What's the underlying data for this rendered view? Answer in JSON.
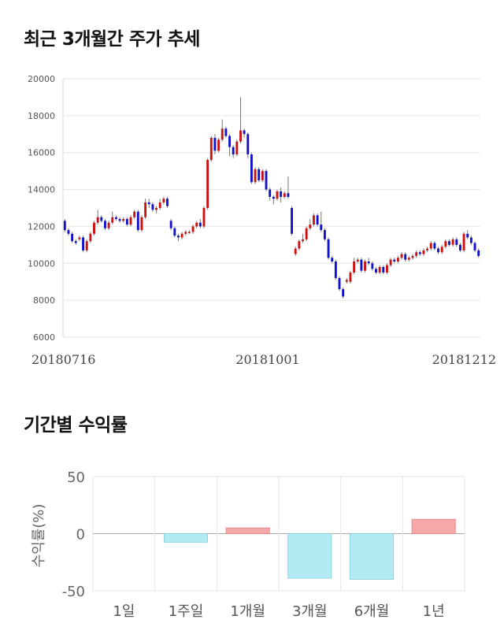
{
  "sections": {
    "price_title": "최근 3개월간 주가 추세",
    "return_title": "기간별 수익률"
  },
  "colors": {
    "up": "#cc1111",
    "down": "#1111cc",
    "positive_bar": "#f7a8a8",
    "negative_bar": "#b3ebf5",
    "grid": "#e6e6e6"
  },
  "chart_data": [
    {
      "type": "candlestick",
      "title": "최근 3개월간 주가 추세",
      "ylim": [
        6000,
        20000
      ],
      "y_ticks": [
        "20000",
        "18000",
        "16000",
        "14000",
        "12000",
        "10000",
        "8000",
        "6000"
      ],
      "x_tick_labels": [
        "20180716",
        "20181001",
        "20181212"
      ],
      "grid": true,
      "candles": [
        [
          12300,
          11800,
          11700,
          12400
        ],
        [
          11800,
          11600,
          11500,
          11900
        ],
        [
          11600,
          11200,
          11100,
          11700
        ],
        [
          11200,
          11100,
          11000,
          11300
        ],
        [
          11300,
          11400,
          11200,
          11500
        ],
        [
          11400,
          10700,
          10600,
          11500
        ],
        [
          10700,
          11200,
          10600,
          11300
        ],
        [
          11200,
          11600,
          11100,
          11700
        ],
        [
          11600,
          12200,
          11500,
          12300
        ],
        [
          12200,
          12500,
          12100,
          12900
        ],
        [
          12500,
          12300,
          12200,
          12600
        ],
        [
          12300,
          11900,
          11800,
          12400
        ],
        [
          11900,
          12200,
          11800,
          12300
        ],
        [
          12200,
          12500,
          12100,
          12800
        ],
        [
          12500,
          12400,
          12300,
          12600
        ],
        [
          12400,
          12300,
          12200,
          12500
        ],
        [
          12300,
          12400,
          12200,
          12500
        ],
        [
          12400,
          12100,
          12000,
          12500
        ],
        [
          12100,
          12500,
          12000,
          12600
        ],
        [
          12500,
          12800,
          12400,
          12900
        ],
        [
          12800,
          11800,
          11700,
          12900
        ],
        [
          11800,
          12500,
          11700,
          12600
        ],
        [
          12500,
          13300,
          12400,
          13500
        ],
        [
          13300,
          13200,
          13000,
          13500
        ],
        [
          13200,
          12900,
          12800,
          13300
        ],
        [
          12900,
          13000,
          12700,
          13100
        ],
        [
          13000,
          13300,
          12900,
          13500
        ],
        [
          13300,
          13500,
          13200,
          13600
        ],
        [
          13500,
          13100,
          13000,
          13600
        ],
        [
          12300,
          11900,
          11800,
          12400
        ],
        [
          11900,
          11500,
          11400,
          12000
        ],
        [
          11500,
          11400,
          11200,
          11600
        ],
        [
          11400,
          11600,
          11300,
          11700
        ],
        [
          11600,
          11700,
          11500,
          11800
        ],
        [
          11700,
          11700,
          11600,
          11800
        ],
        [
          11700,
          12000,
          11600,
          12100
        ],
        [
          12000,
          12200,
          11900,
          12300
        ],
        [
          12200,
          12000,
          11900,
          12400
        ],
        [
          12000,
          13000,
          11900,
          13100
        ],
        [
          13000,
          15600,
          12900,
          15700
        ],
        [
          15600,
          16800,
          15500,
          16900
        ],
        [
          16800,
          16100,
          15900,
          17000
        ],
        [
          16100,
          16700,
          16000,
          16800
        ],
        [
          16700,
          17300,
          16600,
          17800
        ],
        [
          17300,
          16900,
          16800,
          17400
        ],
        [
          16900,
          16300,
          15800,
          17000
        ],
        [
          16300,
          15900,
          15700,
          16400
        ],
        [
          15900,
          16600,
          15800,
          16700
        ],
        [
          16600,
          17200,
          16500,
          19000
        ],
        [
          17200,
          17000,
          16800,
          17300
        ],
        [
          17000,
          15900,
          15700,
          17100
        ],
        [
          15900,
          14400,
          14300,
          16000
        ],
        [
          14400,
          15100,
          14300,
          15200
        ],
        [
          15100,
          14500,
          14400,
          15200
        ],
        [
          14500,
          15000,
          14400,
          15100
        ],
        [
          15000,
          14000,
          13900,
          15100
        ],
        [
          14000,
          13600,
          13400,
          14100
        ],
        [
          13600,
          13500,
          13200,
          13700
        ],
        [
          13500,
          13900,
          13400,
          14000
        ],
        [
          13900,
          13600,
          13300,
          14100
        ],
        [
          13600,
          13800,
          13500,
          13900
        ],
        [
          13800,
          13600,
          13500,
          14700
        ],
        [
          13000,
          11600,
          11500,
          13100
        ],
        [
          10500,
          10800,
          10400,
          10900
        ],
        [
          10800,
          11200,
          10700,
          11300
        ],
        [
          11200,
          11300,
          11100,
          11600
        ],
        [
          11300,
          11900,
          11200,
          12000
        ],
        [
          11900,
          12100,
          11800,
          12400
        ],
        [
          12100,
          12600,
          12000,
          12700
        ],
        [
          12600,
          12100,
          12000,
          12700
        ],
        [
          12100,
          11800,
          11700,
          12800
        ],
        [
          11800,
          11300,
          11200,
          11900
        ],
        [
          11300,
          10300,
          10200,
          11400
        ],
        [
          10300,
          10100,
          10000,
          10400
        ],
        [
          10100,
          9200,
          9100,
          10200
        ],
        [
          9200,
          8600,
          8500,
          9300
        ],
        [
          8600,
          8200,
          8100,
          8700
        ],
        [
          9000,
          9100,
          8900,
          9200
        ],
        [
          9000,
          9500,
          8900,
          9600
        ],
        [
          9500,
          10100,
          9400,
          10300
        ],
        [
          10100,
          10200,
          10000,
          10300
        ],
        [
          10200,
          9600,
          9500,
          10300
        ],
        [
          9600,
          10100,
          9500,
          10200
        ],
        [
          10100,
          10000,
          9900,
          10300
        ],
        [
          10000,
          9700,
          9600,
          10100
        ],
        [
          9700,
          9500,
          9400,
          9800
        ],
        [
          9500,
          9800,
          9400,
          9900
        ],
        [
          9800,
          9500,
          9400,
          9900
        ],
        [
          9500,
          9900,
          9400,
          10000
        ],
        [
          9900,
          10200,
          9800,
          10300
        ],
        [
          10200,
          10100,
          10000,
          10300
        ],
        [
          10100,
          10300,
          10000,
          10400
        ],
        [
          10300,
          10500,
          10200,
          10600
        ],
        [
          10500,
          10200,
          10100,
          10600
        ],
        [
          10200,
          10300,
          10100,
          10400
        ],
        [
          10300,
          10400,
          10200,
          10500
        ],
        [
          10400,
          10600,
          10300,
          10700
        ],
        [
          10600,
          10500,
          10400,
          10700
        ],
        [
          10500,
          10700,
          10400,
          10800
        ],
        [
          10700,
          10800,
          10600,
          10900
        ],
        [
          10800,
          11100,
          10700,
          11200
        ],
        [
          11100,
          10800,
          10700,
          11200
        ],
        [
          10800,
          10600,
          10500,
          10900
        ],
        [
          10600,
          10900,
          10500,
          11000
        ],
        [
          10900,
          11200,
          10800,
          11300
        ],
        [
          11200,
          11000,
          10900,
          11300
        ],
        [
          11000,
          11300,
          10900,
          11400
        ],
        [
          11300,
          11000,
          10900,
          11400
        ],
        [
          11000,
          10700,
          10600,
          11100
        ],
        [
          10700,
          11600,
          10600,
          11700
        ],
        [
          11600,
          11400,
          11300,
          11800
        ],
        [
          11400,
          11100,
          11000,
          11500
        ],
        [
          11100,
          10700,
          10600,
          11200
        ],
        [
          10700,
          10400,
          10300,
          10800
        ]
      ]
    },
    {
      "type": "bar",
      "title": "기간별 수익률",
      "ylabel": "수익률(%)",
      "ylim": [
        -50,
        50
      ],
      "y_ticks": [
        "50",
        "0",
        "-50"
      ],
      "categories": [
        "1일",
        "1주일",
        "1개월",
        "3개월",
        "6개월",
        "1년"
      ],
      "values": [
        0,
        -7.5,
        5.0,
        -39.0,
        -40.0,
        12.5
      ],
      "grid": true
    }
  ]
}
